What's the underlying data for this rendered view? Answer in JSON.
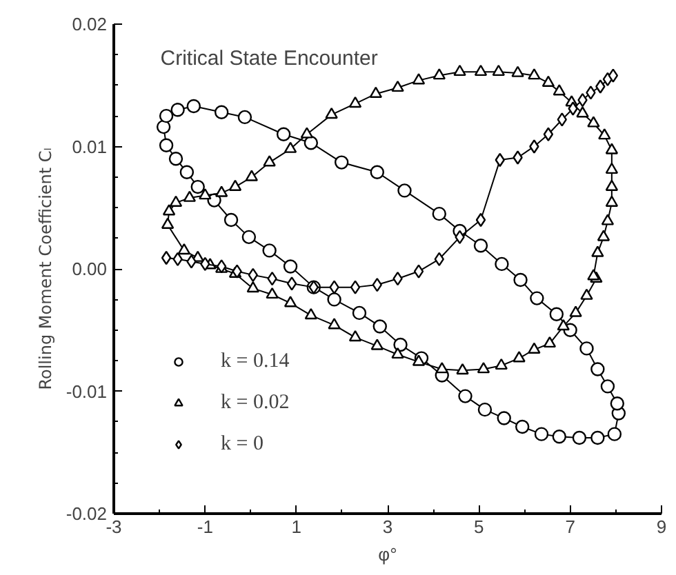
{
  "chart_data": {
    "type": "line",
    "xlabel": "φ°",
    "ylabel": "Rolling Moment Coefficient Cₗ",
    "annotations": [
      "Critical State Encounter"
    ],
    "xlim": [
      -3,
      9
    ],
    "xticks": [
      -3,
      -1,
      1,
      3,
      5,
      7,
      9
    ],
    "ylim": [
      -0.02,
      0.02
    ],
    "yticks": [
      {
        "value": -0.02,
        "label": "-0.02"
      },
      {
        "value": -0.01,
        "label": "-0.01"
      },
      {
        "value": 0,
        "label": "0.00"
      },
      {
        "value": 0.01,
        "label": "0.01"
      },
      {
        "value": 0.02,
        "label": "0.02"
      }
    ],
    "grid": false,
    "legend": "bottom left",
    "series": [
      {
        "name": "k = 0.14",
        "color": "#000000",
        "marker": "circle",
        "x": [
          -1.91,
          -1.85,
          -1.64,
          -1.4,
          -1.16,
          -0.8,
          -0.43,
          -0.04,
          0.41,
          0.87,
          1.38,
          1.83,
          2.38,
          2.83,
          3.28,
          3.74,
          4.19,
          4.7,
          5.13,
          5.55,
          5.95,
          6.37,
          6.76,
          7.2,
          7.6,
          7.97,
          8.06,
          8.03,
          7.82,
          7.6,
          7.36,
          7.0,
          6.7,
          6.27,
          5.91,
          5.5,
          5.04,
          4.58,
          4.13,
          3.37,
          2.77,
          1.99,
          1.32,
          0.72,
          -0.13,
          -0.64,
          -1.25,
          -1.6,
          -1.85
        ],
        "values": [
          0.0116,
          0.0101,
          0.009,
          0.0079,
          0.0067,
          0.0056,
          0.004,
          0.0026,
          0.0015,
          0.0002,
          -0.0015,
          -0.0025,
          -0.0036,
          -0.0047,
          -0.0062,
          -0.0073,
          -0.0087,
          -0.0104,
          -0.0115,
          -0.0122,
          -0.0129,
          -0.0135,
          -0.0137,
          -0.0138,
          -0.0138,
          -0.0135,
          -0.0118,
          -0.011,
          -0.0096,
          -0.0082,
          -0.0065,
          -0.005,
          -0.0037,
          -0.0024,
          -0.0009,
          0.0004,
          0.0019,
          0.0031,
          0.0045,
          0.0064,
          0.0079,
          0.0087,
          0.0103,
          0.011,
          0.0124,
          0.0128,
          0.0133,
          0.013,
          0.0125
        ]
      },
      {
        "name": "k = 0.02",
        "color": "#000000",
        "marker": "triangle",
        "x": [
          7.57,
          7.36,
          7.12,
          6.85,
          6.55,
          6.21,
          5.88,
          5.49,
          5.1,
          4.64,
          4.19,
          3.68,
          3.22,
          2.77,
          2.29,
          1.83,
          1.32,
          0.87,
          0.47,
          0.05,
          -0.34,
          -0.64,
          -0.89,
          -1.16,
          -1.46,
          -1.82,
          -1.79,
          -1.64,
          -1.34,
          -1.0,
          -0.64,
          -0.34,
          0.02,
          0.41,
          0.87,
          1.23,
          1.77,
          2.29,
          2.74,
          3.22,
          3.68,
          4.13,
          4.58,
          5.04,
          5.43,
          5.85,
          6.21,
          6.52,
          6.76,
          7.03,
          7.27,
          7.51,
          7.75,
          7.91,
          7.91,
          7.91,
          7.91,
          7.82,
          7.73,
          7.6,
          7.51
        ],
        "values": [
          -0.0008,
          -0.0022,
          -0.0036,
          -0.0047,
          -0.0061,
          -0.0066,
          -0.0073,
          -0.0079,
          -0.0082,
          -0.0083,
          -0.0082,
          -0.0076,
          -0.007,
          -0.0063,
          -0.0056,
          -0.0046,
          -0.0038,
          -0.0028,
          -0.0021,
          -0.0016,
          -0.0004,
          0.0,
          0.0003,
          0.0009,
          0.0015,
          0.0036,
          0.0047,
          0.0054,
          0.0058,
          0.006,
          0.0062,
          0.0067,
          0.0075,
          0.0087,
          0.0098,
          0.011,
          0.0126,
          0.0135,
          0.0143,
          0.0148,
          0.0154,
          0.0158,
          0.0161,
          0.0161,
          0.0161,
          0.016,
          0.0158,
          0.0152,
          0.0145,
          0.0136,
          0.0127,
          0.0119,
          0.0109,
          0.0097,
          0.0081,
          0.0067,
          0.0054,
          0.0039,
          0.0026,
          0.0013,
          -0.0006
        ]
      },
      {
        "name": "k = 0",
        "color": "#000000",
        "marker": "diamond",
        "x": [
          -1.85,
          -1.6,
          -1.3,
          -1.0,
          -0.64,
          -0.3,
          0.05,
          0.47,
          0.9,
          1.38,
          1.83,
          2.29,
          2.77,
          3.22,
          3.68,
          4.13,
          4.58,
          5.04,
          5.46,
          5.85,
          6.21,
          6.52,
          6.82,
          7.06,
          7.27,
          7.45,
          7.66,
          7.82,
          7.94
        ],
        "values": [
          0.0009,
          0.0008,
          0.0006,
          0.0004,
          0.0002,
          -0.0002,
          -0.0005,
          -0.0008,
          -0.0012,
          -0.0015,
          -0.0015,
          -0.0015,
          -0.0013,
          -0.0008,
          -0.0002,
          0.0008,
          0.0026,
          0.004,
          0.0089,
          0.0091,
          0.01,
          0.011,
          0.0122,
          0.0131,
          0.0138,
          0.0144,
          0.0149,
          0.0155,
          0.0158
        ]
      }
    ]
  }
}
